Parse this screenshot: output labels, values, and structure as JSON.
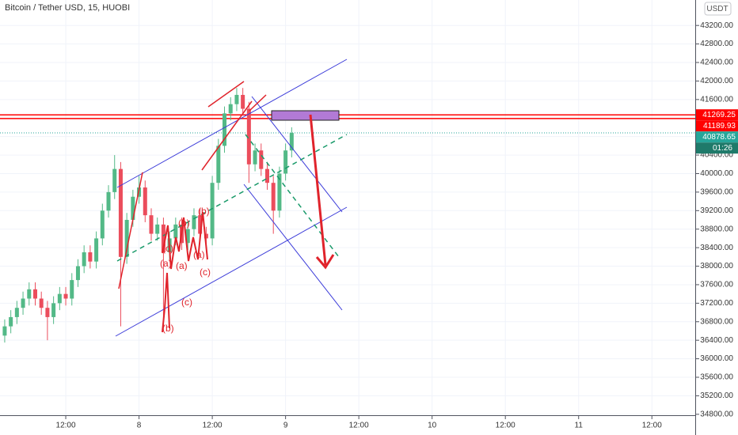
{
  "chart_data": {
    "type": "candlestick",
    "title": "Bitcoin / Tether USD, 15, HUOBI",
    "currency": "USDT",
    "countdown": "01:26",
    "up_color": "#53b987",
    "down_color": "#eb4d5c",
    "grid": true,
    "x": [
      2,
      3,
      4,
      5,
      6,
      7,
      8,
      9,
      10,
      11,
      12,
      13,
      14,
      15,
      16,
      17,
      18,
      19,
      20,
      21,
      22,
      23,
      24,
      25,
      26,
      27,
      28,
      29,
      30,
      31,
      32,
      33,
      34,
      35,
      36,
      37,
      38,
      39,
      40,
      41,
      42,
      43,
      44,
      45,
      46,
      47,
      48,
      49
    ],
    "open": [
      36500,
      36700,
      36900,
      37100,
      37300,
      37500,
      37300,
      37100,
      36900,
      37200,
      37400,
      37300,
      37700,
      38000,
      38300,
      38100,
      38600,
      39200,
      39600,
      40100,
      38200,
      39000,
      39500,
      39700,
      39100,
      38700,
      38900,
      38300,
      38600,
      38900,
      38500,
      38800,
      39100,
      38700,
      38600,
      39800,
      40600,
      41300,
      41500,
      41700,
      41400,
      40200,
      40500,
      40100,
      39800,
      39200,
      40000,
      40500
    ],
    "high": [
      36850,
      37050,
      37250,
      37450,
      37650,
      37650,
      37450,
      37250,
      37350,
      37550,
      37550,
      37850,
      38150,
      38450,
      38450,
      38750,
      39350,
      39750,
      40400,
      40250,
      39150,
      39650,
      39950,
      39850,
      39250,
      39050,
      39050,
      38750,
      39050,
      39050,
      38950,
      39250,
      39250,
      38850,
      39950,
      40750,
      41450,
      41650,
      41850,
      41850,
      41550,
      40650,
      40650,
      40250,
      39950,
      40150,
      40650,
      41000
    ],
    "low": [
      36350,
      36550,
      36750,
      36950,
      37150,
      37150,
      36950,
      36400,
      36750,
      37050,
      37150,
      37150,
      37550,
      37850,
      37950,
      37950,
      38450,
      39050,
      39450,
      36700,
      38050,
      38850,
      39350,
      38950,
      38550,
      38550,
      36700,
      38150,
      38450,
      38350,
      38350,
      38650,
      38550,
      38450,
      38450,
      39650,
      40450,
      41150,
      41350,
      41250,
      39800,
      40050,
      39950,
      39650,
      38700,
      39050,
      39850,
      40350
    ],
    "close": [
      36700,
      36900,
      37100,
      37300,
      37500,
      37300,
      37100,
      36900,
      37200,
      37400,
      37300,
      37700,
      38000,
      38300,
      38100,
      38600,
      39200,
      39600,
      40100,
      38200,
      39000,
      39500,
      39700,
      39100,
      38700,
      38900,
      38300,
      38600,
      38900,
      38500,
      38800,
      39100,
      38700,
      38600,
      39800,
      40600,
      41300,
      41500,
      41700,
      41400,
      40200,
      40500,
      40100,
      39800,
      39200,
      40000,
      40500,
      40880
    ],
    "xlim": [
      1.23,
      115.1
    ],
    "xticks": [
      {
        "value": 12,
        "label": "12:00"
      },
      {
        "value": 24,
        "label": "8"
      },
      {
        "value": 36,
        "label": "12:00"
      },
      {
        "value": 48,
        "label": "9"
      },
      {
        "value": 60,
        "label": "12:00"
      },
      {
        "value": 72,
        "label": "10"
      },
      {
        "value": 84,
        "label": "12:00"
      },
      {
        "value": 96,
        "label": "11"
      },
      {
        "value": 108,
        "label": "12:00"
      }
    ],
    "ylim": [
      34780,
      43750
    ],
    "yticks": [
      {
        "value": 34800,
        "label": "34800.00"
      },
      {
        "value": 35200,
        "label": "35200.00"
      },
      {
        "value": 35600,
        "label": "35600.00"
      },
      {
        "value": 36000,
        "label": "36000.00"
      },
      {
        "value": 36400,
        "label": "36400.00"
      },
      {
        "value": 36800,
        "label": "36800.00"
      },
      {
        "value": 37200,
        "label": "37200.00"
      },
      {
        "value": 37600,
        "label": "37600.00"
      },
      {
        "value": 38000,
        "label": "38000.00"
      },
      {
        "value": 38400,
        "label": "38400.00"
      },
      {
        "value": 38800,
        "label": "38800.00"
      },
      {
        "value": 39200,
        "label": "39200.00"
      },
      {
        "value": 39600,
        "label": "39600.00"
      },
      {
        "value": 40000,
        "label": "40000.00"
      },
      {
        "value": 40400,
        "label": "40400.00"
      },
      {
        "value": 40800,
        "label": "40800.00"
      },
      {
        "value": 41200,
        "label": "41200.00"
      },
      {
        "value": 41600,
        "label": "41600.00"
      },
      {
        "value": 42000,
        "label": "42000.00"
      },
      {
        "value": 42400,
        "label": "42400.00"
      },
      {
        "value": 42800,
        "label": "42800.00"
      },
      {
        "value": 43200,
        "label": "43200.00"
      }
    ],
    "price_lines": [
      {
        "value": 41269.25,
        "color": "#ff0000",
        "style": "solid"
      },
      {
        "value": 41189.93,
        "color": "#ff0000",
        "style": "solid"
      },
      {
        "value": 40878.65,
        "color": "#26a69a",
        "style": "dotted"
      }
    ],
    "annotations": [
      "(b)",
      "(b)",
      "(c)",
      "(a)",
      "(a)",
      "(c)",
      "(c)",
      "(b)",
      "(a)"
    ]
  }
}
